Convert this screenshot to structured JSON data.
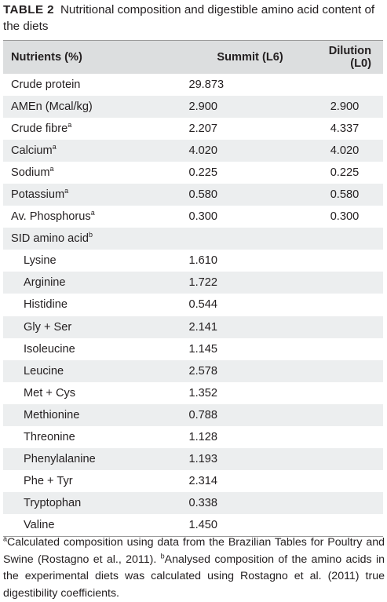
{
  "caption": {
    "label": "TABLE 2",
    "text": "Nutritional composition and digestible amino acid content of the diets"
  },
  "table": {
    "headers": [
      "Nutrients (%)",
      "Summit (L6)",
      "Dilution (L0)"
    ],
    "rows": [
      {
        "name": "Crude protein",
        "sup": "",
        "summit": "29.873",
        "dilution": "",
        "indent": false
      },
      {
        "name": "AMEn (Mcal/kg)",
        "sup": "",
        "summit": "2.900",
        "dilution": "2.900",
        "indent": false
      },
      {
        "name": "Crude fibre",
        "sup": "a",
        "summit": "2.207",
        "dilution": "4.337",
        "indent": false
      },
      {
        "name": "Calcium",
        "sup": "a",
        "summit": "4.020",
        "dilution": "4.020",
        "indent": false
      },
      {
        "name": "Sodium",
        "sup": "a",
        "summit": "0.225",
        "dilution": "0.225",
        "indent": false
      },
      {
        "name": "Potassium",
        "sup": "a",
        "summit": "0.580",
        "dilution": "0.580",
        "indent": false
      },
      {
        "name": "Av. Phosphorus",
        "sup": "a",
        "summit": "0.300",
        "dilution": "0.300",
        "indent": false
      },
      {
        "name": "SID amino acid",
        "sup": "b",
        "summit": "",
        "dilution": "",
        "indent": false
      },
      {
        "name": "Lysine",
        "sup": "",
        "summit": "1.610",
        "dilution": "",
        "indent": true
      },
      {
        "name": "Arginine",
        "sup": "",
        "summit": "1.722",
        "dilution": "",
        "indent": true
      },
      {
        "name": "Histidine",
        "sup": "",
        "summit": "0.544",
        "dilution": "",
        "indent": true
      },
      {
        "name": "Gly + Ser",
        "sup": "",
        "summit": "2.141",
        "dilution": "",
        "indent": true
      },
      {
        "name": "Isoleucine",
        "sup": "",
        "summit": "1.145",
        "dilution": "",
        "indent": true
      },
      {
        "name": "Leucine",
        "sup": "",
        "summit": "2.578",
        "dilution": "",
        "indent": true
      },
      {
        "name": "Met + Cys",
        "sup": "",
        "summit": "1.352",
        "dilution": "",
        "indent": true
      },
      {
        "name": "Methionine",
        "sup": "",
        "summit": "0.788",
        "dilution": "",
        "indent": true
      },
      {
        "name": "Threonine",
        "sup": "",
        "summit": "1.128",
        "dilution": "",
        "indent": true
      },
      {
        "name": "Phenylalanine",
        "sup": "",
        "summit": "1.193",
        "dilution": "",
        "indent": true
      },
      {
        "name": "Phe + Tyr",
        "sup": "",
        "summit": "2.314",
        "dilution": "",
        "indent": true
      },
      {
        "name": "Tryptophan",
        "sup": "",
        "summit": "0.338",
        "dilution": "",
        "indent": true
      },
      {
        "name": "Valine",
        "sup": "",
        "summit": "1.450",
        "dilution": "",
        "indent": true
      }
    ]
  },
  "footnote": {
    "a_mark": "a",
    "a_text": "Calculated composition using data from the Brazilian Tables for Poultry and Swine (Rostagno et al., 2011).",
    "b_mark": "b",
    "b_text": "Analysed composition of the amino acids in the experimental diets was calculated using Rostagno et al. (2011) true digestibility coefficients."
  }
}
